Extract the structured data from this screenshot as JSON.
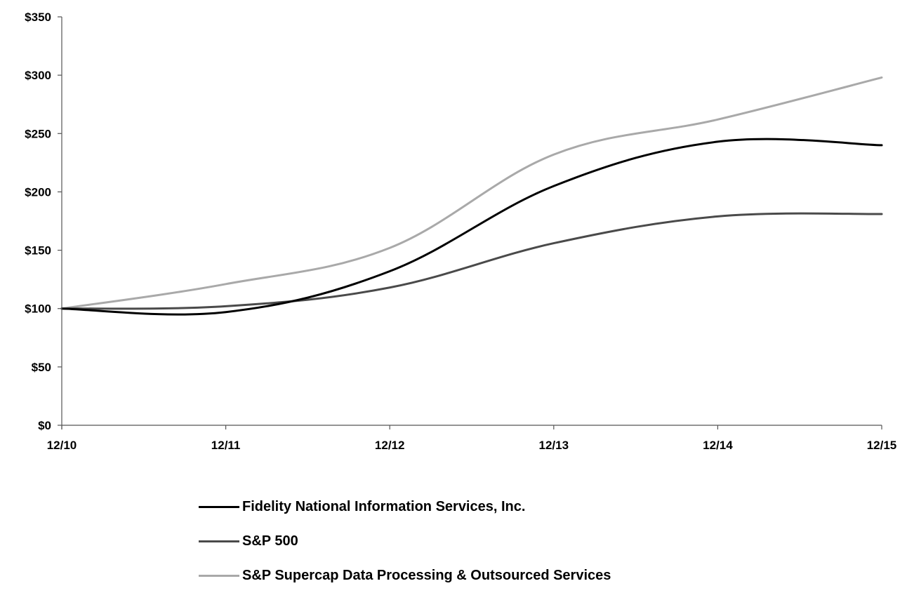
{
  "chart_data": {
    "type": "line",
    "x": [
      "12/10",
      "12/11",
      "12/12",
      "12/13",
      "12/14",
      "12/15"
    ],
    "yticks": [
      "$0",
      "$50",
      "$100",
      "$150",
      "$200",
      "$250",
      "$300",
      "$350"
    ],
    "ylim": [
      0,
      350
    ],
    "grid": false,
    "legend_position": "bottom",
    "series": [
      {
        "name": "Fidelity National Information Services, Inc.",
        "color": "#000000",
        "values": [
          100,
          97,
          132,
          205,
          243,
          240
        ]
      },
      {
        "name": "S&P 500",
        "color": "#4a4a4a",
        "values": [
          100,
          102,
          118,
          156,
          179,
          181
        ]
      },
      {
        "name": "S&P Supercap Data Processing & Outsourced Services",
        "color": "#a9a9a9",
        "values": [
          100,
          121,
          152,
          232,
          262,
          298
        ]
      }
    ]
  }
}
